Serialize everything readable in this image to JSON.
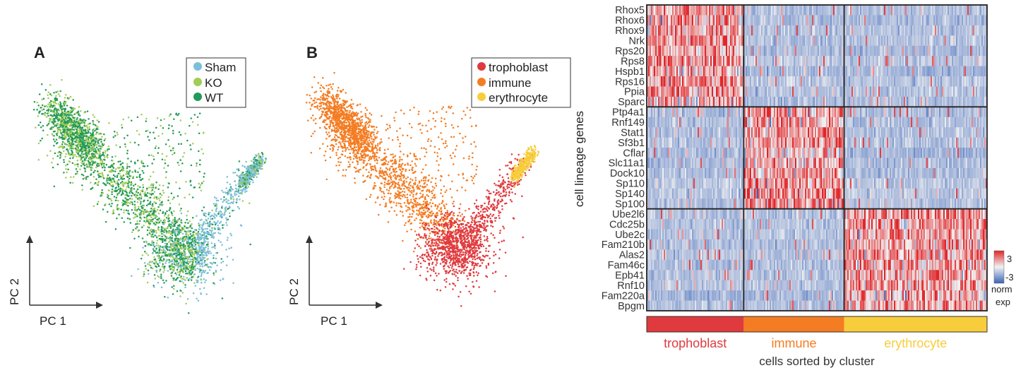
{
  "panel_a": {
    "label": "A",
    "x_axis_label": "PC 1",
    "y_axis_label": "PC 2"
  },
  "panel_b": {
    "label": "B",
    "x_axis_label": "PC 1",
    "y_axis_label": "PC 2"
  },
  "heatmap": {
    "y_axis_label": "cell lineage genes",
    "x_axis_label": "cells sorted by cluster",
    "colorbar": {
      "max_label": "3",
      "min_label": "-3",
      "title_line1": "norm",
      "title_line2": "exp"
    }
  },
  "colors": {
    "sham": "#7bbfd8",
    "ko": "#a3cc56",
    "wt": "#239a5a",
    "trophoblast": "#e03a3e",
    "immune": "#f47c22",
    "erythrocyte": "#f7cd3c",
    "heat_low": "#3a63b8",
    "heat_mid": "#f2f2f2",
    "heat_high": "#e0262a",
    "heat_base": "#9db7de"
  },
  "chart_data": [
    {
      "type": "scatter",
      "panel": "A",
      "xlabel": "PC 1",
      "ylabel": "PC 2",
      "legend_position": "top-right",
      "series": [
        {
          "name": "Sham",
          "color": "#7bbfd8"
        },
        {
          "name": "KO",
          "color": "#a3cc56"
        },
        {
          "name": "WT",
          "color": "#239a5a"
        }
      ]
    },
    {
      "type": "scatter",
      "panel": "B",
      "xlabel": "PC 1",
      "ylabel": "PC 2",
      "legend_position": "top-right",
      "series": [
        {
          "name": "trophoblast",
          "color": "#e03a3e"
        },
        {
          "name": "immune",
          "color": "#f47c22"
        },
        {
          "name": "erythrocyte",
          "color": "#f7cd3c"
        }
      ]
    },
    {
      "type": "heatmap",
      "ylabel": "cell lineage genes",
      "xlabel": "cells sorted by cluster",
      "value_range": [
        -3,
        3
      ],
      "clusters": [
        {
          "name": "trophoblast",
          "color": "#e03a3e",
          "cell_fraction": 0.285
        },
        {
          "name": "immune",
          "color": "#f47c22",
          "cell_fraction": 0.295
        },
        {
          "name": "erythrocyte",
          "color": "#f7cd3c",
          "cell_fraction": 0.42
        }
      ],
      "gene_groups": [
        {
          "cluster": "trophoblast",
          "genes": [
            "Rhox5",
            "Rhox6",
            "Rhox9",
            "Nrk",
            "Rps20",
            "Rps8",
            "Hspb1",
            "Rps16",
            "Ppia",
            "Sparc"
          ]
        },
        {
          "cluster": "immune",
          "genes": [
            "Ptp4a1",
            "Rnf149",
            "Stat1",
            "Sf3b1",
            "Cflar",
            "Slc11a1",
            "Dock10",
            "Sp110",
            "Sp140",
            "Sp100"
          ]
        },
        {
          "cluster": "erythrocyte",
          "genes": [
            "Ube2l6",
            "Cdc25b",
            "Ube2c",
            "Fam210b",
            "Alas2",
            "Fam46c",
            "Epb41",
            "Rnf10",
            "Fam220a",
            "Bpgm"
          ]
        }
      ]
    }
  ]
}
